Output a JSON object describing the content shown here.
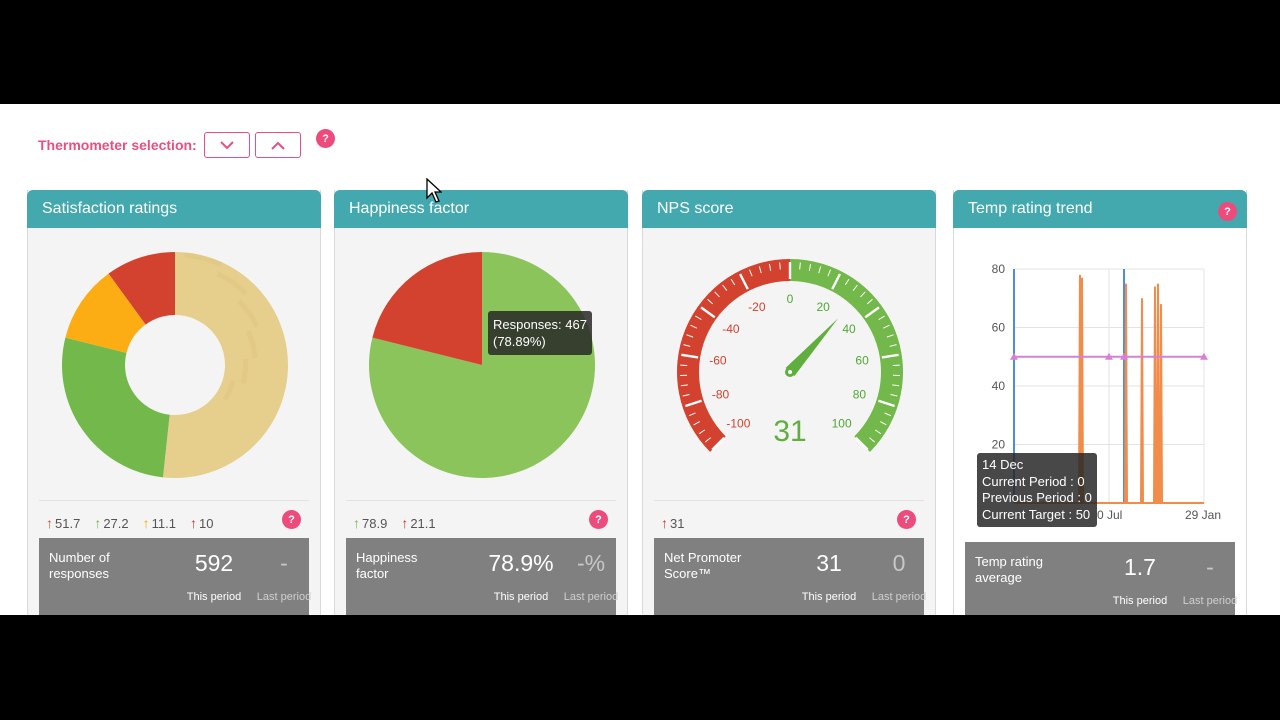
{
  "toolbar": {
    "thermometer_label": "Thermometer selection:",
    "down_icon": "chevron-down-icon",
    "up_icon": "chevron-up-icon",
    "help_glyph": "?"
  },
  "colors": {
    "accent_pink": "#e8507e",
    "header_teal": "#43a9ae",
    "red": "#d2422e",
    "green": "#8bc45a",
    "orange": "#fbad13",
    "gold": "#e6cf8c",
    "stat_bg": "#808080"
  },
  "cards": [
    {
      "title": "Satisfaction ratings",
      "legend": [
        {
          "arrow": "↑",
          "value": "51.7",
          "color": "#c0583c"
        },
        {
          "arrow": "↑",
          "value": "27.2",
          "color": "#72b84a"
        },
        {
          "arrow": "↑",
          "value": "11.1",
          "color": "#f4ad13"
        },
        {
          "arrow": "↑",
          "value": "10",
          "color": "#c0392b"
        }
      ],
      "stats": {
        "name": "Number of responses",
        "this_value": "592",
        "last_value": "-",
        "this_label": "This period",
        "last_label": "Last period"
      }
    },
    {
      "title": "Happiness factor",
      "tooltip": {
        "line1": "Responses: 467",
        "line2": "(78.89%)"
      },
      "legend": [
        {
          "arrow": "↑",
          "value": "78.9",
          "color": "#72b84a"
        },
        {
          "arrow": "↑",
          "value": "21.1",
          "color": "#c0392b"
        }
      ],
      "stats": {
        "name": "Happiness factor",
        "this_value": "78.9%",
        "last_value": "-%",
        "this_label": "This period",
        "last_label": "Last period"
      }
    },
    {
      "title": "NPS score",
      "gauge": {
        "value": "31",
        "value_num": 31,
        "min": -100,
        "max": 100,
        "labels": [
          "-100",
          "-80",
          "-60",
          "-40",
          "-20",
          "0",
          "20",
          "40",
          "60",
          "80",
          "100"
        ]
      },
      "legend": [
        {
          "arrow": "↑",
          "value": "31",
          "color": "#c0392b"
        }
      ],
      "stats": {
        "name": "Net Promoter Score™",
        "this_value": "31",
        "last_value": "0",
        "this_label": "This period",
        "last_label": "Last period"
      }
    },
    {
      "title": "Temp rating trend",
      "tooltip": {
        "line1": "14 Dec",
        "line2": "Current Period : 0",
        "line3": "Previous Period : 0",
        "line4": "Current Target : 50"
      },
      "x_ticks": [
        "0 Jul",
        "29 Jan"
      ],
      "stats": {
        "name": "Temp rating average",
        "this_value": "1.7",
        "last_value": "-",
        "this_label": "This period",
        "last_label": "Last period"
      }
    }
  ],
  "chart_data": [
    {
      "type": "pie",
      "title": "Satisfaction ratings",
      "donut": true,
      "slices": [
        {
          "value": 51.7,
          "color": "#e6cf8c"
        },
        {
          "value": 27.2,
          "color": "#72b84a"
        },
        {
          "value": 11.1,
          "color": "#fbad13"
        },
        {
          "value": 10,
          "color": "#d2422e"
        }
      ]
    },
    {
      "type": "pie",
      "title": "Happiness factor",
      "slices": [
        {
          "value": 78.9,
          "color": "#8bc45a"
        },
        {
          "value": 21.1,
          "color": "#d2422e"
        }
      ]
    },
    {
      "type": "line",
      "title": "Temp rating trend",
      "ylim": [
        0,
        80
      ],
      "y_ticks": [
        20,
        40,
        60,
        80
      ],
      "series": [
        {
          "color": "#f28c4a",
          "spikes_y": [
            78,
            77,
            75,
            70,
            74,
            75,
            68
          ]
        },
        {
          "color": "#d680d8",
          "constant_y": 50
        },
        {
          "color": "#4a8fd9"
        }
      ]
    }
  ]
}
